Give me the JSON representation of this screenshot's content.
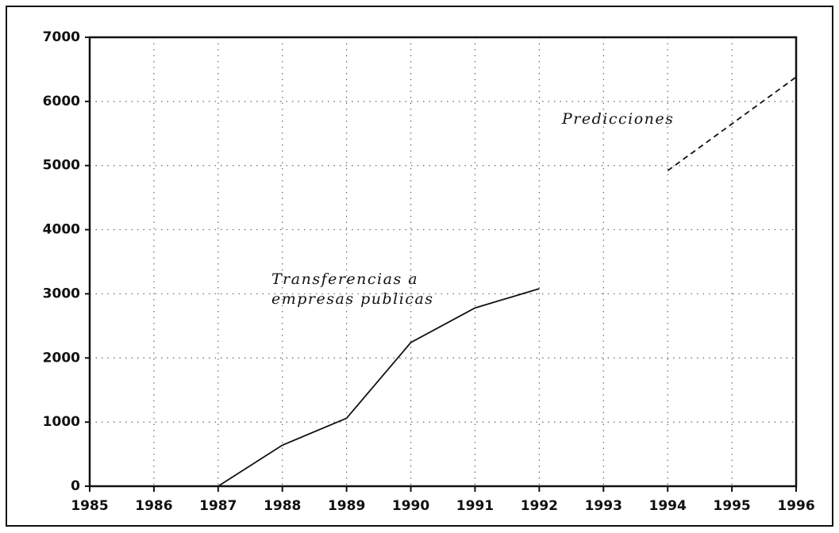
{
  "chart_data": {
    "type": "line",
    "series": [
      {
        "name": "Transferencias a\nempresas publicas",
        "color": "#111111",
        "dash": false,
        "x": [
          1987,
          1988,
          1989,
          1990,
          1991,
          1992
        ],
        "values": [
          0,
          640,
          1060,
          2240,
          2780,
          3080
        ]
      },
      {
        "name": "Predicciones",
        "color": "#111111",
        "dash": true,
        "x": [
          1994,
          1995,
          1996
        ],
        "values": [
          4920,
          5650,
          6380
        ]
      }
    ],
    "xlim": [
      1985,
      1996
    ],
    "xticks": [
      1985,
      1986,
      1987,
      1988,
      1989,
      1990,
      1991,
      1992,
      1993,
      1994,
      1995,
      1996
    ],
    "ylim": [
      0,
      7000
    ],
    "yticks": [
      0,
      1000,
      2000,
      3000,
      4000,
      5000,
      6000,
      7000
    ],
    "grid": true
  }
}
